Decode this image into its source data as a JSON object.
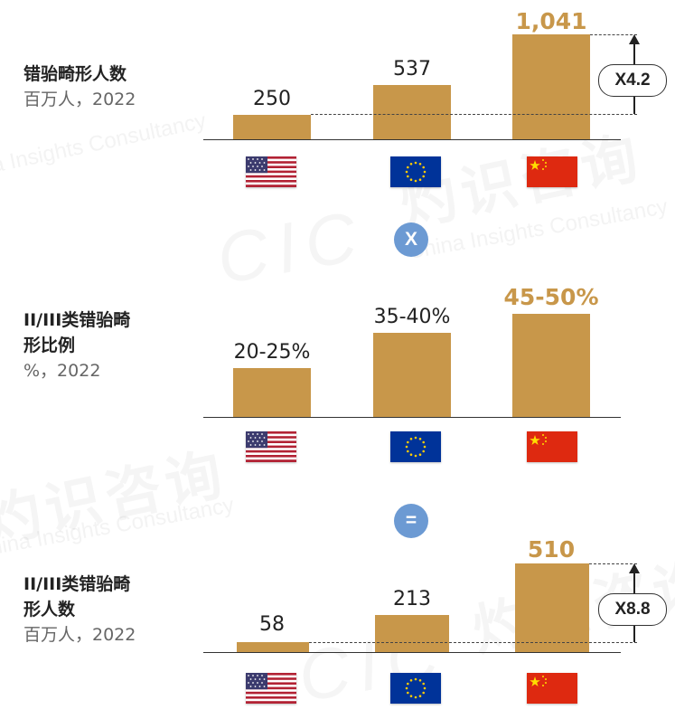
{
  "panels": [
    {
      "title_lines": [
        "错骀畸形人数"
      ],
      "subtitle": "百万人，2022",
      "bar_labels": [
        "250",
        "537",
        "1,041"
      ],
      "multiplier": "X4.2"
    },
    {
      "title_lines": [
        "II/III类错骀畸",
        "形比例"
      ],
      "subtitle": "%，2022",
      "bar_labels": [
        "20-25%",
        "35-40%",
        "45-50%"
      ]
    },
    {
      "title_lines": [
        "II/III类错骀畸",
        "形人数"
      ],
      "subtitle": "百万人，2022",
      "bar_labels": [
        "58",
        "213",
        "510"
      ],
      "multiplier": "X8.8"
    }
  ],
  "operators": {
    "times": "X",
    "equals": "="
  },
  "flags": [
    "united-states-flag",
    "european-union-flag",
    "china-flag"
  ],
  "colors": {
    "bar": "#C8974A",
    "highlight_label": "#C8974A",
    "operator_circle": "#6C9AD3"
  },
  "watermark": {
    "cn": "灼识咨询",
    "en": "China Insights Consultancy",
    "logo": "CIC"
  },
  "chart_data": [
    {
      "type": "bar",
      "title": "错骀畸形人数",
      "subtitle": "百万人，2022",
      "categories": [
        "united-states-flag",
        "european-union-flag",
        "china-flag"
      ],
      "values": [
        250,
        537,
        1041
      ],
      "annotation": "X4.2"
    },
    {
      "type": "bar",
      "title": "II/III类错骀畸形比例",
      "subtitle": "%，2022",
      "categories": [
        "united-states-flag",
        "european-union-flag",
        "china-flag"
      ],
      "values": [
        22.5,
        37.5,
        47.5
      ],
      "value_labels": [
        "20-25%",
        "35-40%",
        "45-50%"
      ]
    },
    {
      "type": "bar",
      "title": "II/III类错骀畸形人数",
      "subtitle": "百万人，2022",
      "categories": [
        "united-states-flag",
        "european-union-flag",
        "china-flag"
      ],
      "values": [
        58,
        213,
        510
      ],
      "annotation": "X8.8"
    }
  ]
}
